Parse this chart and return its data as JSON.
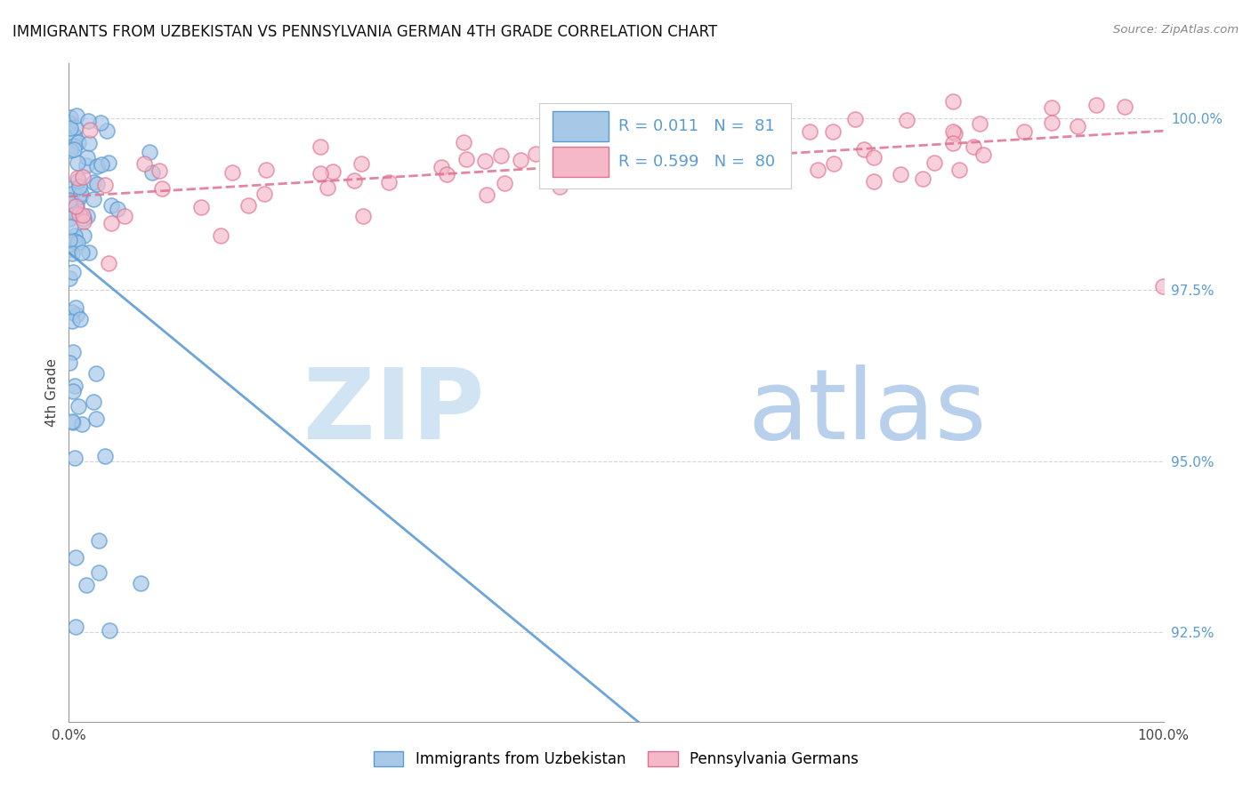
{
  "title": "IMMIGRANTS FROM UZBEKISTAN VS PENNSYLVANIA GERMAN 4TH GRADE CORRELATION CHART",
  "source": "Source: ZipAtlas.com",
  "ylabel": "4th Grade",
  "y_ticks": [
    92.5,
    95.0,
    97.5,
    100.0
  ],
  "y_tick_labels": [
    "92.5%",
    "95.0%",
    "97.5%",
    "100.0%"
  ],
  "x_range": [
    0.0,
    100.0
  ],
  "y_range": [
    91.2,
    100.8
  ],
  "legend_label1": "Immigrants from Uzbekistan",
  "legend_label2": "Pennsylvania Germans",
  "R1": 0.011,
  "N1": 81,
  "R2": 0.599,
  "N2": 80,
  "color_blue_fill": "#a8c8e8",
  "color_blue_edge": "#5b9bd5",
  "color_pink_fill": "#f4b8c8",
  "color_pink_edge": "#e07090",
  "color_blue_line": "#5b9bd5",
  "color_pink_line": "#e07090",
  "watermark_zip_color": "#d0e4f4",
  "watermark_atlas_color": "#b8d0ec"
}
